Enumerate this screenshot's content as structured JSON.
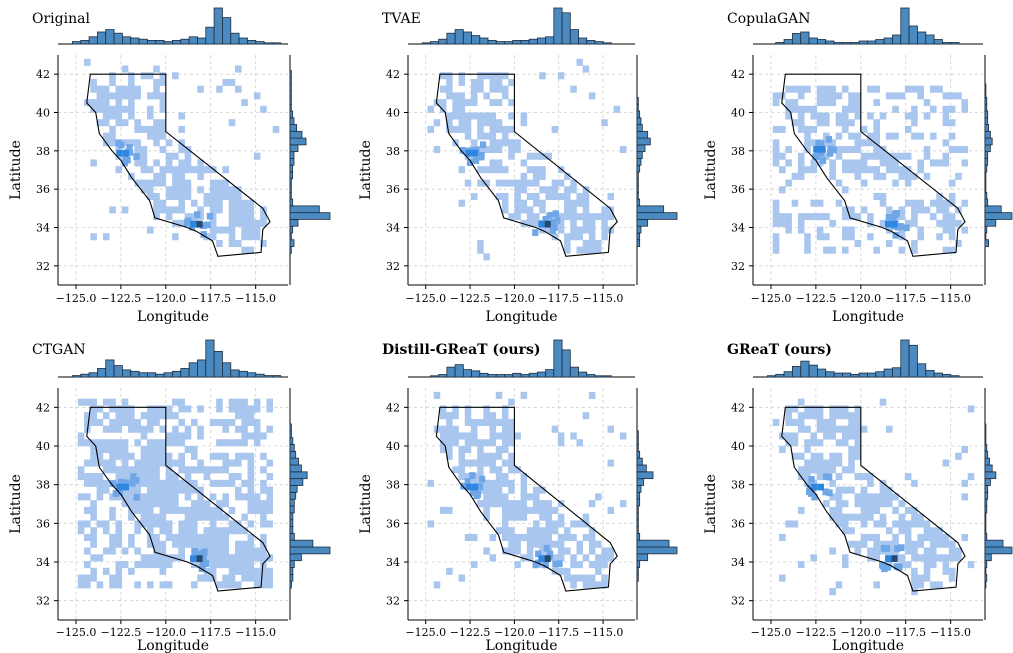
{
  "figure": {
    "xlabel": "Longitude",
    "ylabel": "Latitude",
    "x_ticks": [
      "−125.0",
      "−122.5",
      "−120.0",
      "−117.5",
      "−115.0"
    ],
    "y_ticks": [
      "32",
      "34",
      "36",
      "38",
      "40",
      "42"
    ]
  },
  "colors": {
    "cell_light": "#a9c6ee",
    "cell_mid": "#6ea6e8",
    "cell_strong": "#2f86e0",
    "cell_dark": "#244a72",
    "hist_fill": "#4a8ac0",
    "hist_edge": "#1f2d3d",
    "grid": "#cfcfcf"
  },
  "chart_data": [
    {
      "type": "heatmap",
      "title": "Original",
      "title_bold": false,
      "xlabel": "Longitude",
      "ylabel": "Latitude",
      "xlim": [
        -126.0,
        -113.2
      ],
      "ylim": [
        31.0,
        43.0
      ],
      "x_ticks": [
        -125.0,
        -122.5,
        -120.0,
        -117.5,
        -115.0
      ],
      "y_ticks": [
        32,
        34,
        36,
        38,
        40,
        42
      ],
      "spread": "state",
      "hotspots": [
        {
          "lon": -118.3,
          "lat": 34.0,
          "level": "dark"
        },
        {
          "lon": -122.4,
          "lat": 37.7,
          "level": "strong"
        }
      ],
      "x_marginal": [
        2,
        3,
        6,
        10,
        12,
        9,
        6,
        5,
        4,
        3,
        3,
        2,
        3,
        4,
        6,
        5,
        14,
        30,
        22,
        9,
        5,
        3,
        2,
        1,
        1
      ],
      "y_marginal": [
        0,
        1,
        3,
        1,
        2,
        6,
        30,
        22,
        2,
        1,
        1,
        1,
        2,
        2,
        3,
        3,
        6,
        12,
        9,
        5,
        3,
        2,
        1,
        1,
        1,
        1,
        1,
        1
      ]
    },
    {
      "type": "heatmap",
      "title": "TVAE",
      "title_bold": false,
      "xlabel": "Longitude",
      "ylabel": "Latitude",
      "xlim": [
        -126.0,
        -113.2
      ],
      "ylim": [
        31.0,
        43.0
      ],
      "x_ticks": [
        -125.0,
        -122.5,
        -120.0,
        -117.5,
        -115.0
      ],
      "y_ticks": [
        32,
        34,
        36,
        38,
        40,
        42
      ],
      "spread": "state",
      "hotspots": [
        {
          "lon": -118.3,
          "lat": 34.0,
          "level": "dark"
        },
        {
          "lon": -122.4,
          "lat": 37.7,
          "level": "strong"
        }
      ],
      "x_marginal": [
        1,
        2,
        4,
        9,
        12,
        10,
        7,
        5,
        3,
        2,
        2,
        3,
        3,
        4,
        5,
        6,
        30,
        26,
        12,
        5,
        3,
        2,
        1,
        0,
        0
      ],
      "y_marginal": [
        0,
        0,
        2,
        2,
        3,
        8,
        30,
        20,
        2,
        1,
        1,
        1,
        1,
        2,
        3,
        4,
        6,
        10,
        8,
        4,
        3,
        2,
        1,
        1,
        0,
        0,
        0,
        0
      ]
    },
    {
      "type": "heatmap",
      "title": "CopulaGAN",
      "title_bold": false,
      "xlabel": "Longitude",
      "ylabel": "Latitude",
      "xlim": [
        -126.0,
        -113.2
      ],
      "ylim": [
        31.0,
        43.0
      ],
      "x_ticks": [
        -125.0,
        -122.5,
        -120.0,
        -117.5,
        -115.0
      ],
      "y_ticks": [
        32,
        34,
        36,
        38,
        40,
        42
      ],
      "spread": "box",
      "hotspots": [
        {
          "lon": -118.3,
          "lat": 34.0,
          "level": "strong"
        },
        {
          "lon": -122.3,
          "lat": 37.9,
          "level": "strong"
        }
      ],
      "x_marginal": [
        0,
        1,
        3,
        7,
        8,
        4,
        3,
        2,
        1,
        1,
        1,
        2,
        2,
        3,
        4,
        6,
        24,
        12,
        8,
        6,
        3,
        1,
        1,
        0,
        0
      ],
      "y_marginal": [
        0,
        0,
        4,
        1,
        2,
        12,
        30,
        18,
        3,
        2,
        1,
        1,
        1,
        2,
        3,
        3,
        6,
        8,
        6,
        4,
        3,
        3,
        2,
        2,
        1,
        1,
        0,
        0
      ]
    },
    {
      "type": "heatmap",
      "title": "CTGAN",
      "title_bold": false,
      "xlabel": "Longitude",
      "ylabel": "Latitude",
      "xlim": [
        -126.0,
        -113.2
      ],
      "ylim": [
        31.0,
        43.0
      ],
      "x_ticks": [
        -125.0,
        -122.5,
        -120.0,
        -117.5,
        -115.0
      ],
      "y_ticks": [
        32,
        34,
        36,
        38,
        40,
        42
      ],
      "spread": "wide",
      "hotspots": [
        {
          "lon": -118.3,
          "lat": 34.0,
          "level": "dark"
        },
        {
          "lon": -122.4,
          "lat": 37.7,
          "level": "strong"
        }
      ],
      "x_marginal": [
        1,
        2,
        3,
        6,
        12,
        8,
        5,
        4,
        3,
        3,
        2,
        3,
        4,
        6,
        10,
        12,
        26,
        18,
        10,
        5,
        4,
        3,
        2,
        1,
        1
      ],
      "y_marginal": [
        0,
        1,
        2,
        2,
        3,
        8,
        28,
        16,
        3,
        2,
        2,
        2,
        3,
        3,
        4,
        5,
        9,
        12,
        8,
        6,
        4,
        3,
        2,
        1,
        1,
        0,
        0,
        0
      ]
    },
    {
      "type": "heatmap",
      "title": "Distill-GReaT (ours)",
      "title_bold": true,
      "xlabel": "Longitude",
      "ylabel": "Latitude",
      "xlim": [
        -126.0,
        -113.2
      ],
      "ylim": [
        31.0,
        43.0
      ],
      "x_ticks": [
        -125.0,
        -122.5,
        -120.0,
        -117.5,
        -115.0
      ],
      "y_ticks": [
        32,
        34,
        36,
        38,
        40,
        42
      ],
      "spread": "state",
      "hotspots": [
        {
          "lon": -118.3,
          "lat": 34.0,
          "level": "dark"
        },
        {
          "lon": -122.4,
          "lat": 37.7,
          "level": "strong"
        }
      ],
      "x_marginal": [
        0,
        1,
        2,
        8,
        10,
        6,
        5,
        3,
        2,
        2,
        2,
        3,
        2,
        3,
        4,
        6,
        30,
        22,
        8,
        4,
        2,
        1,
        1,
        0,
        0
      ],
      "y_marginal": [
        0,
        0,
        1,
        1,
        2,
        8,
        30,
        24,
        2,
        1,
        1,
        1,
        1,
        2,
        2,
        3,
        5,
        12,
        7,
        4,
        2,
        1,
        1,
        1,
        0,
        0,
        0,
        0
      ]
    },
    {
      "type": "heatmap",
      "title": "GReaT (ours)",
      "title_bold": true,
      "xlabel": "Longitude",
      "ylabel": "Latitude",
      "xlim": [
        -126.0,
        -113.2
      ],
      "ylim": [
        31.0,
        43.0
      ],
      "x_ticks": [
        -125.0,
        -122.5,
        -120.0,
        -117.5,
        -115.0
      ],
      "y_ticks": [
        32,
        34,
        36,
        38,
        40,
        42
      ],
      "spread": "state",
      "hotspots": [
        {
          "lon": -118.3,
          "lat": 34.0,
          "level": "dark"
        },
        {
          "lon": -122.4,
          "lat": 37.7,
          "level": "strong"
        }
      ],
      "x_marginal": [
        1,
        2,
        4,
        8,
        12,
        9,
        6,
        4,
        3,
        3,
        2,
        3,
        3,
        4,
        6,
        7,
        28,
        24,
        10,
        5,
        3,
        2,
        1,
        0,
        0
      ],
      "y_marginal": [
        0,
        1,
        2,
        1,
        2,
        7,
        30,
        20,
        2,
        1,
        1,
        1,
        2,
        2,
        3,
        3,
        6,
        12,
        8,
        5,
        3,
        2,
        1,
        1,
        1,
        0,
        0,
        0
      ]
    }
  ]
}
